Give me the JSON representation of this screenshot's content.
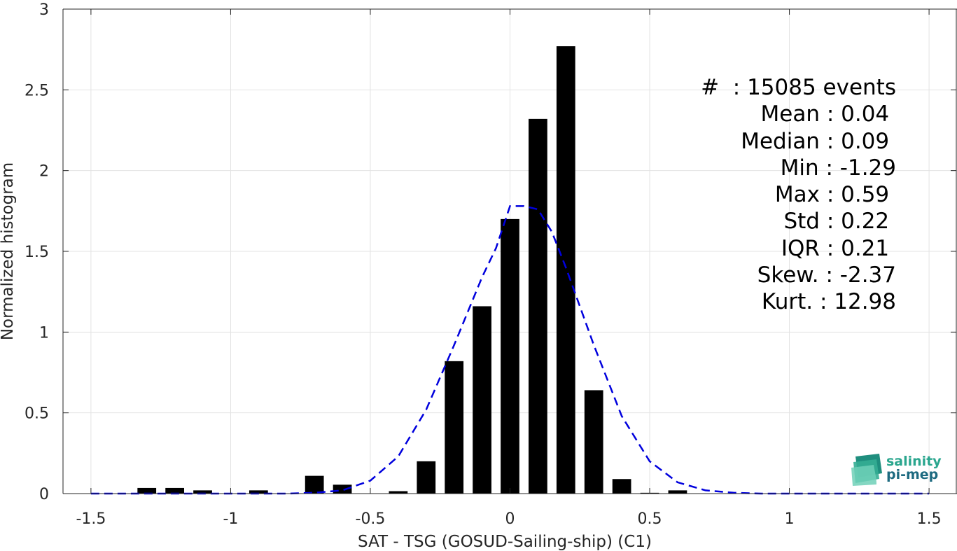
{
  "chart_data": {
    "type": "bar",
    "xlabel": "SAT - TSG (GOSUD-Sailing-ship) (C1)",
    "ylabel": "Normalized histogram",
    "xlim": [
      -1.6,
      1.6
    ],
    "ylim": [
      0,
      3
    ],
    "xticks": [
      -1.5,
      -1,
      -0.5,
      0,
      0.5,
      1,
      1.5
    ],
    "xtick_labels": [
      "-1.5",
      "-1",
      "-0.5",
      "0",
      "0.5",
      "1",
      "1.5"
    ],
    "yticks": [
      0,
      0.5,
      1,
      1.5,
      2,
      2.5,
      3
    ],
    "ytick_labels": [
      "0",
      "0.5",
      "1",
      "1.5",
      "2",
      "2.5",
      "3"
    ],
    "grid": true,
    "bar_color": "#000000",
    "bins": [
      {
        "x": -1.3,
        "value": 0.035
      },
      {
        "x": -1.2,
        "value": 0.035
      },
      {
        "x": -1.1,
        "value": 0.02
      },
      {
        "x": -0.9,
        "value": 0.02
      },
      {
        "x": -0.7,
        "value": 0.11
      },
      {
        "x": -0.6,
        "value": 0.055
      },
      {
        "x": -0.4,
        "value": 0.015
      },
      {
        "x": -0.3,
        "value": 0.2
      },
      {
        "x": -0.2,
        "value": 0.82
      },
      {
        "x": -0.1,
        "value": 1.16
      },
      {
        "x": 0.0,
        "value": 1.7
      },
      {
        "x": 0.1,
        "value": 2.32
      },
      {
        "x": 0.2,
        "value": 2.77
      },
      {
        "x": 0.3,
        "value": 0.64
      },
      {
        "x": 0.4,
        "value": 0.09
      },
      {
        "x": 0.5,
        "value": 0.005
      },
      {
        "x": 0.6,
        "value": 0.02
      }
    ],
    "fit_curve": {
      "style": "dashed",
      "color": "#0000dd",
      "x": [
        -1.5,
        -1.4,
        -1.3,
        -1.2,
        -1.1,
        -1.0,
        -0.9,
        -0.8,
        -0.7,
        -0.6,
        -0.5,
        -0.4,
        -0.3,
        -0.2,
        -0.1,
        -0.05,
        0.0,
        0.05,
        0.1,
        0.15,
        0.2,
        0.3,
        0.4,
        0.5,
        0.6,
        0.7,
        0.8,
        0.9,
        1.0,
        1.1,
        1.2,
        1.3,
        1.4,
        1.5
      ],
      "y": [
        0.0,
        0.0,
        0.0,
        0.0,
        0.0,
        0.0,
        0.0,
        0.0,
        0.005,
        0.02,
        0.08,
        0.23,
        0.52,
        0.92,
        1.34,
        1.52,
        1.78,
        1.78,
        1.76,
        1.62,
        1.4,
        0.92,
        0.48,
        0.2,
        0.07,
        0.02,
        0.005,
        0.0,
        0.0,
        0.0,
        0.0,
        0.0,
        0.0,
        0.0
      ]
    }
  },
  "stats": [
    "#  : 15085 events",
    "Mean : 0.04 ",
    "Median : 0.09 ",
    "Min : -1.29",
    "Max : 0.59 ",
    "Std : 0.22 ",
    "IQR : 0.21 ",
    "Skew. : -2.37",
    "Kurt. : 12.98"
  ],
  "logo": {
    "line1": "salinity",
    "line2": "pi-mep",
    "colors": [
      "#2aa68e",
      "#1d6a80"
    ]
  }
}
